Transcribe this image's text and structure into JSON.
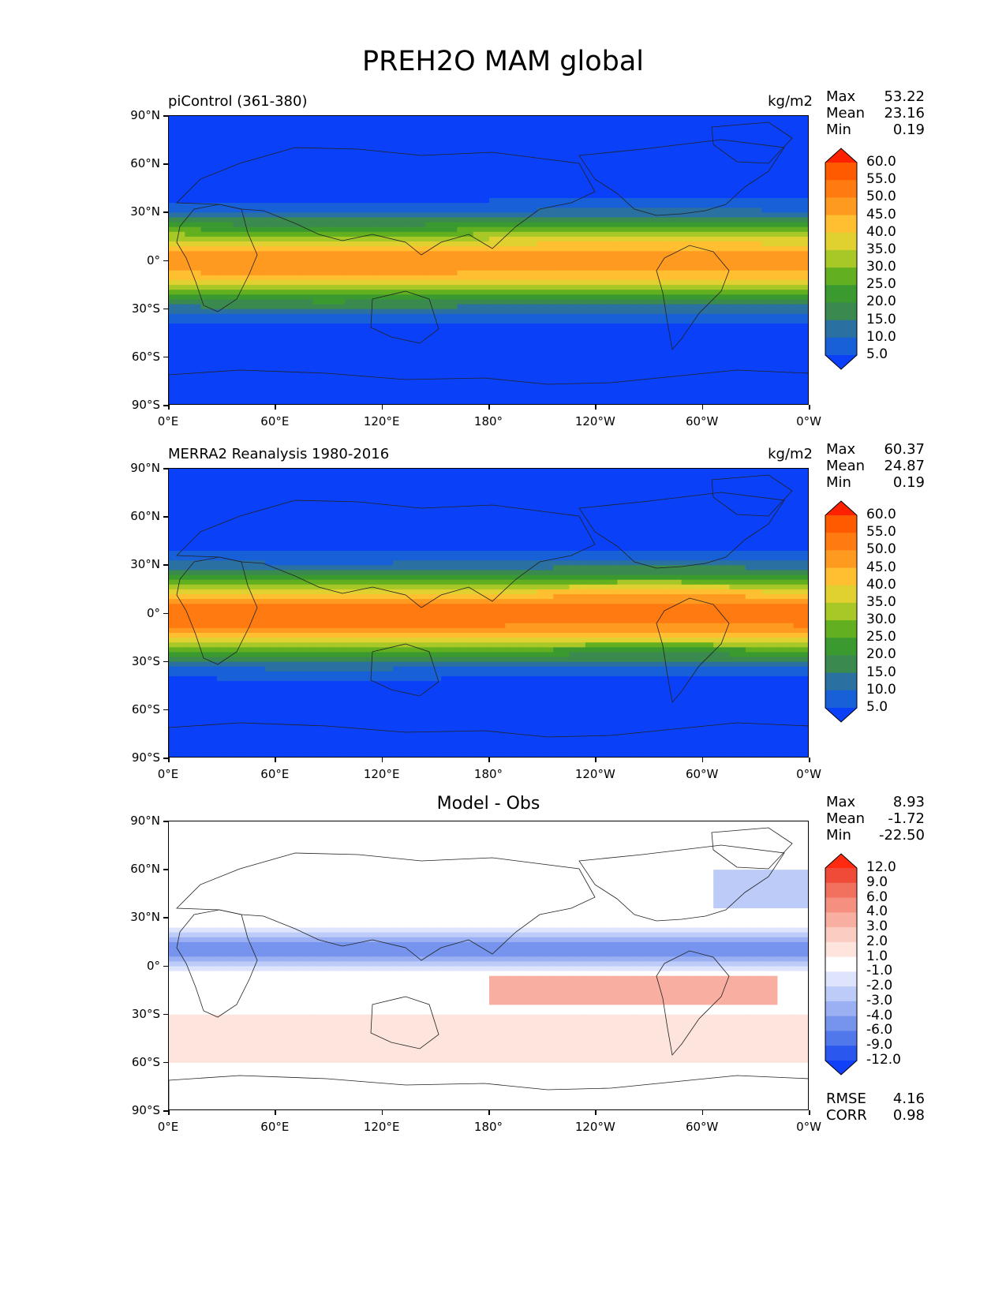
{
  "figure_title": "PREH2O MAM global",
  "lat_labels": [
    "90°N",
    "60°N",
    "30°N",
    "0°",
    "30°S",
    "60°S",
    "90°S"
  ],
  "lon_labels": [
    "0°E",
    "60°E",
    "120°E",
    "180°",
    "120°W",
    "60°W",
    "0°W"
  ],
  "panels": [
    {
      "title_left": "piControl (361-380)",
      "title_right": "kg/m2",
      "title_center": "",
      "stats": [
        {
          "key": "Max",
          "value": "53.22"
        },
        {
          "key": "Mean",
          "value": "23.16"
        },
        {
          "key": "Min",
          "value": "0.19"
        }
      ],
      "bottom_stats": [],
      "colorbar_labels": [
        "60.0",
        "55.0",
        "50.0",
        "45.0",
        "40.0",
        "35.0",
        "30.0",
        "25.0",
        "20.0",
        "15.0",
        "10.0",
        "5.0"
      ],
      "colorbar_colors": [
        "#ff2200",
        "#ff5a00",
        "#ff7a10",
        "#ff9a20",
        "#ffbf30",
        "#e0d030",
        "#a8c828",
        "#62b020",
        "#3a9a30",
        "#3a8a50",
        "#2a70a0",
        "#1860d8",
        "#0a40f8"
      ],
      "colormap": "precip"
    },
    {
      "title_left": "MERRA2 Reanalysis 1980-2016",
      "title_right": "kg/m2",
      "title_center": "",
      "stats": [
        {
          "key": "Max",
          "value": "60.37"
        },
        {
          "key": "Mean",
          "value": "24.87"
        },
        {
          "key": "Min",
          "value": "0.19"
        }
      ],
      "bottom_stats": [],
      "colorbar_labels": [
        "60.0",
        "55.0",
        "50.0",
        "45.0",
        "40.0",
        "35.0",
        "30.0",
        "25.0",
        "20.0",
        "15.0",
        "10.0",
        "5.0"
      ],
      "colorbar_colors": [
        "#ff2200",
        "#ff5a00",
        "#ff7a10",
        "#ff9a20",
        "#ffbf30",
        "#e0d030",
        "#a8c828",
        "#62b020",
        "#3a9a30",
        "#3a8a50",
        "#2a70a0",
        "#1860d8",
        "#0a40f8"
      ],
      "colormap": "precip"
    },
    {
      "title_left": "",
      "title_right": "",
      "title_center": "Model - Obs",
      "stats": [
        {
          "key": "Max",
          "value": "8.93"
        },
        {
          "key": "Mean",
          "value": "-1.72"
        },
        {
          "key": "Min",
          "value": "-22.50"
        }
      ],
      "bottom_stats": [
        {
          "key": "RMSE",
          "value": "4.16"
        },
        {
          "key": "CORR",
          "value": "0.98"
        }
      ],
      "colorbar_labels": [
        "12.0",
        "9.0",
        "6.0",
        "4.0",
        "3.0",
        "2.0",
        "1.0",
        "-1.0",
        "-2.0",
        "-3.0",
        "-4.0",
        "-6.0",
        "-9.0",
        "-12.0"
      ],
      "colorbar_colors": [
        "#ff2a10",
        "#f04a38",
        "#f2705e",
        "#f59080",
        "#f8aea0",
        "#fbcdc2",
        "#fde4dc",
        "#ffffff",
        "#dde4fb",
        "#bccbf7",
        "#9ab0f2",
        "#7694ee",
        "#5078ea",
        "#2a58ee",
        "#1040f8"
      ],
      "colormap": "diff"
    }
  ]
}
